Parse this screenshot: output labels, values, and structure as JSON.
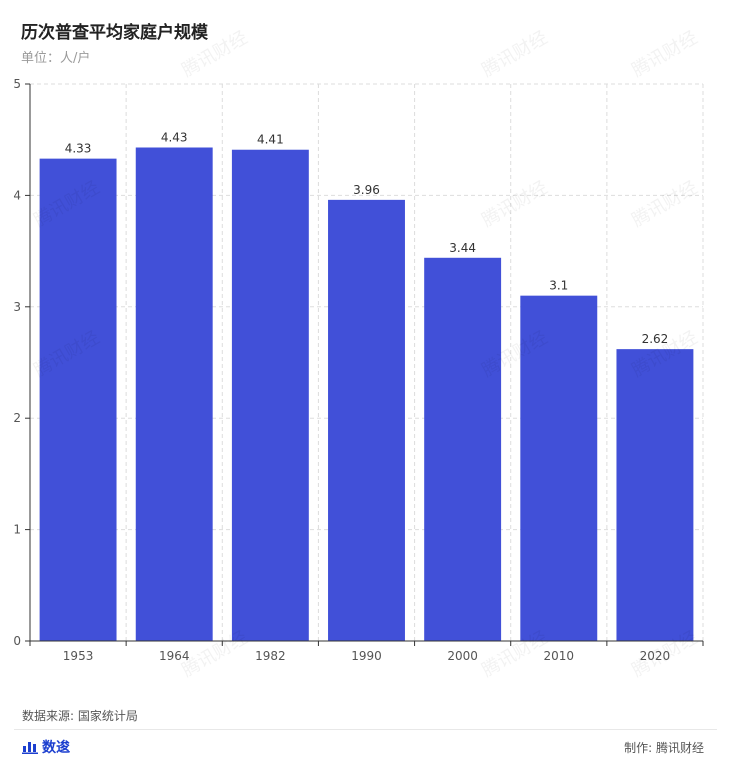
{
  "title": "历次普查平均家庭户规模",
  "subtitle": "单位：人/户",
  "source": "数据来源: 国家统计局",
  "brand": "数逡",
  "credit": "制作: 腾讯财经",
  "watermark": "腾讯财经",
  "colors": {
    "bar": "#4150d8",
    "axis": "#333333",
    "grid": "#dddddd"
  },
  "chart_data": {
    "type": "bar",
    "categories": [
      "1953",
      "1964",
      "1982",
      "1990",
      "2000",
      "2010",
      "2020"
    ],
    "values": [
      4.33,
      4.43,
      4.41,
      3.96,
      3.44,
      3.1,
      2.62
    ],
    "data_labels": [
      "4.33",
      "4.43",
      "4.41",
      "3.96",
      "3.44",
      "3.1",
      "2.62"
    ],
    "title": "历次普查平均家庭户规模",
    "ylabel": "单位：人/户",
    "ylim": [
      0,
      5
    ],
    "yticks": [
      0,
      1,
      2,
      3,
      4,
      5
    ],
    "grid": true
  }
}
